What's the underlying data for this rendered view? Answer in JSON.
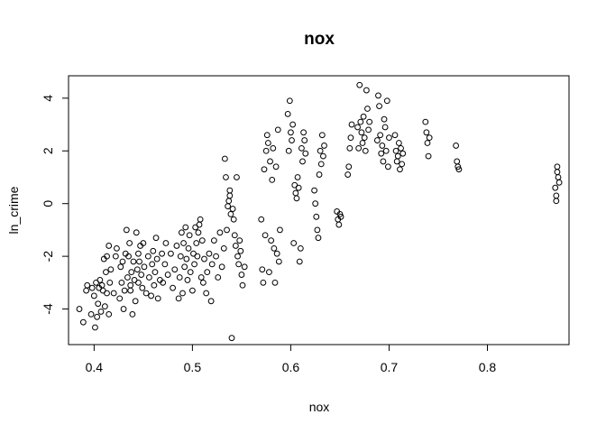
{
  "chart_data": {
    "type": "scatter",
    "title": "nox",
    "xlabel": "nox",
    "ylabel": "ln_crime",
    "xlim": [
      0.374,
      0.883
    ],
    "ylim": [
      -5.35,
      4.85
    ],
    "xticks": [
      0.4,
      0.5,
      0.6,
      0.7,
      0.8
    ],
    "xtick_labels": [
      "0.4",
      "0.5",
      "0.6",
      "0.7",
      "0.8"
    ],
    "yticks": [
      -4,
      -2,
      0,
      2,
      4
    ],
    "ytick_labels": [
      "-4",
      "-2",
      "0",
      "2",
      "4"
    ],
    "grid": false,
    "marker": "open-circle",
    "point_color": "#000000",
    "points": [
      [
        0.385,
        -4.0
      ],
      [
        0.389,
        -4.5
      ],
      [
        0.392,
        -3.3
      ],
      [
        0.393,
        -3.1
      ],
      [
        0.397,
        -4.2
      ],
      [
        0.398,
        -3.2
      ],
      [
        0.4,
        -3.5
      ],
      [
        0.401,
        -4.7
      ],
      [
        0.402,
        -3.0
      ],
      [
        0.403,
        -4.3
      ],
      [
        0.404,
        -3.8
      ],
      [
        0.405,
        -3.2
      ],
      [
        0.406,
        -2.9
      ],
      [
        0.407,
        -4.1
      ],
      [
        0.408,
        -3.1
      ],
      [
        0.409,
        -3.3
      ],
      [
        0.41,
        -2.1
      ],
      [
        0.411,
        -3.9
      ],
      [
        0.412,
        -2.6
      ],
      [
        0.413,
        -3.4
      ],
      [
        0.413,
        -2.0
      ],
      [
        0.415,
        -1.6
      ],
      [
        0.415,
        -4.2
      ],
      [
        0.416,
        -3.0
      ],
      [
        0.417,
        -2.5
      ],
      [
        0.42,
        -3.4
      ],
      [
        0.422,
        -2.0
      ],
      [
        0.423,
        -1.7
      ],
      [
        0.426,
        -3.6
      ],
      [
        0.427,
        -2.4
      ],
      [
        0.428,
        -3.0
      ],
      [
        0.429,
        -2.2
      ],
      [
        0.43,
        -4.0
      ],
      [
        0.431,
        -3.3
      ],
      [
        0.432,
        -1.9
      ],
      [
        0.433,
        -1.0
      ],
      [
        0.434,
        -2.8
      ],
      [
        0.435,
        -2.0
      ],
      [
        0.436,
        -1.5
      ],
      [
        0.437,
        -3.1
      ],
      [
        0.437,
        -3.3
      ],
      [
        0.438,
        -2.6
      ],
      [
        0.439,
        -4.2
      ],
      [
        0.44,
        -2.2
      ],
      [
        0.441,
        -2.9
      ],
      [
        0.442,
        -3.7
      ],
      [
        0.443,
        -1.1
      ],
      [
        0.444,
        -2.5
      ],
      [
        0.445,
        -1.9
      ],
      [
        0.445,
        -3.0
      ],
      [
        0.446,
        -2.2
      ],
      [
        0.447,
        -1.6
      ],
      [
        0.448,
        -2.7
      ],
      [
        0.449,
        -3.2
      ],
      [
        0.45,
        -1.5
      ],
      [
        0.451,
        -2.4
      ],
      [
        0.453,
        -3.4
      ],
      [
        0.455,
        -2.0
      ],
      [
        0.456,
        -2.8
      ],
      [
        0.458,
        -3.5
      ],
      [
        0.459,
        -2.3
      ],
      [
        0.46,
        -1.8
      ],
      [
        0.461,
        -3.1
      ],
      [
        0.462,
        -2.6
      ],
      [
        0.463,
        -1.3
      ],
      [
        0.464,
        -2.1
      ],
      [
        0.465,
        -3.6
      ],
      [
        0.467,
        -2.9
      ],
      [
        0.469,
        -1.9
      ],
      [
        0.47,
        -3.0
      ],
      [
        0.472,
        -2.3
      ],
      [
        0.473,
        -1.5
      ],
      [
        0.475,
        -2.7
      ],
      [
        0.478,
        -1.9
      ],
      [
        0.48,
        -3.2
      ],
      [
        0.482,
        -2.5
      ],
      [
        0.484,
        -1.6
      ],
      [
        0.486,
        -3.6
      ],
      [
        0.487,
        -2.8
      ],
      [
        0.488,
        -2.0
      ],
      [
        0.489,
        -1.1
      ],
      [
        0.49,
        -3.4
      ],
      [
        0.491,
        -1.5
      ],
      [
        0.492,
        -2.4
      ],
      [
        0.493,
        -0.9
      ],
      [
        0.494,
        -2.1
      ],
      [
        0.495,
        -2.9
      ],
      [
        0.496,
        -1.7
      ],
      [
        0.497,
        -1.2
      ],
      [
        0.498,
        -2.6
      ],
      [
        0.5,
        -3.3
      ],
      [
        0.501,
        -1.9
      ],
      [
        0.502,
        -2.3
      ],
      [
        0.503,
        -0.9
      ],
      [
        0.504,
        -1.5
      ],
      [
        0.505,
        -2.0
      ],
      [
        0.506,
        -1.1
      ],
      [
        0.507,
        -0.8
      ],
      [
        0.508,
        -0.6
      ],
      [
        0.509,
        -2.8
      ],
      [
        0.51,
        -1.4
      ],
      [
        0.511,
        -3.0
      ],
      [
        0.512,
        -2.1
      ],
      [
        0.514,
        -3.4
      ],
      [
        0.515,
        -2.6
      ],
      [
        0.517,
        -1.9
      ],
      [
        0.519,
        -3.7
      ],
      [
        0.52,
        -2.3
      ],
      [
        0.522,
        -1.4
      ],
      [
        0.524,
        -2.0
      ],
      [
        0.526,
        -2.8
      ],
      [
        0.528,
        -1.1
      ],
      [
        0.53,
        -2.4
      ],
      [
        0.532,
        -1.7
      ],
      [
        0.533,
        1.7
      ],
      [
        0.534,
        1.0
      ],
      [
        0.535,
        -1.0
      ],
      [
        0.536,
        -0.1
      ],
      [
        0.537,
        0.1
      ],
      [
        0.538,
        0.3
      ],
      [
        0.538,
        0.5
      ],
      [
        0.539,
        -0.4
      ],
      [
        0.54,
        -5.1
      ],
      [
        0.541,
        -0.2
      ],
      [
        0.542,
        -0.6
      ],
      [
        0.543,
        -1.2
      ],
      [
        0.544,
        -1.6
      ],
      [
        0.545,
        1.0
      ],
      [
        0.546,
        -2.0
      ],
      [
        0.547,
        -2.3
      ],
      [
        0.548,
        -1.4
      ],
      [
        0.549,
        -1.8
      ],
      [
        0.55,
        -2.7
      ],
      [
        0.551,
        -3.1
      ],
      [
        0.553,
        -2.4
      ],
      [
        0.57,
        -0.6
      ],
      [
        0.571,
        -2.5
      ],
      [
        0.572,
        -3.0
      ],
      [
        0.573,
        1.3
      ],
      [
        0.574,
        -1.2
      ],
      [
        0.575,
        2.0
      ],
      [
        0.576,
        2.6
      ],
      [
        0.577,
        2.3
      ],
      [
        0.578,
        -2.6
      ],
      [
        0.579,
        1.6
      ],
      [
        0.58,
        -1.4
      ],
      [
        0.581,
        0.9
      ],
      [
        0.582,
        2.1
      ],
      [
        0.583,
        -1.7
      ],
      [
        0.584,
        -3.0
      ],
      [
        0.585,
        1.4
      ],
      [
        0.586,
        -1.9
      ],
      [
        0.587,
        2.8
      ],
      [
        0.588,
        -2.2
      ],
      [
        0.589,
        -1.0
      ],
      [
        0.597,
        3.4
      ],
      [
        0.598,
        2.0
      ],
      [
        0.599,
        3.9
      ],
      [
        0.6,
        2.7
      ],
      [
        0.601,
        2.4
      ],
      [
        0.602,
        3.0
      ],
      [
        0.603,
        -1.5
      ],
      [
        0.604,
        0.7
      ],
      [
        0.605,
        0.4
      ],
      [
        0.606,
        0.2
      ],
      [
        0.607,
        1.0
      ],
      [
        0.608,
        0.6
      ],
      [
        0.609,
        -2.2
      ],
      [
        0.61,
        -1.7
      ],
      [
        0.611,
        2.1
      ],
      [
        0.612,
        1.6
      ],
      [
        0.613,
        2.7
      ],
      [
        0.614,
        2.4
      ],
      [
        0.615,
        1.9
      ],
      [
        0.624,
        0.5
      ],
      [
        0.625,
        0.0
      ],
      [
        0.626,
        -0.5
      ],
      [
        0.627,
        -1.0
      ],
      [
        0.628,
        -1.3
      ],
      [
        0.629,
        1.1
      ],
      [
        0.63,
        2.0
      ],
      [
        0.631,
        1.5
      ],
      [
        0.632,
        2.6
      ],
      [
        0.633,
        1.8
      ],
      [
        0.634,
        2.2
      ],
      [
        0.647,
        -0.3
      ],
      [
        0.648,
        -0.6
      ],
      [
        0.649,
        -0.8
      ],
      [
        0.65,
        -0.4
      ],
      [
        0.651,
        -0.5
      ],
      [
        0.658,
        1.1
      ],
      [
        0.659,
        1.4
      ],
      [
        0.66,
        2.1
      ],
      [
        0.661,
        2.5
      ],
      [
        0.662,
        3.0
      ],
      [
        0.668,
        2.9
      ],
      [
        0.669,
        2.1
      ],
      [
        0.67,
        4.5
      ],
      [
        0.671,
        3.1
      ],
      [
        0.672,
        2.7
      ],
      [
        0.673,
        2.3
      ],
      [
        0.674,
        3.3
      ],
      [
        0.675,
        2.5
      ],
      [
        0.676,
        2.0
      ],
      [
        0.677,
        4.3
      ],
      [
        0.678,
        3.6
      ],
      [
        0.679,
        2.8
      ],
      [
        0.68,
        3.1
      ],
      [
        0.688,
        2.4
      ],
      [
        0.689,
        4.1
      ],
      [
        0.69,
        3.7
      ],
      [
        0.691,
        2.6
      ],
      [
        0.692,
        1.9
      ],
      [
        0.693,
        2.2
      ],
      [
        0.694,
        1.6
      ],
      [
        0.695,
        3.2
      ],
      [
        0.696,
        2.9
      ],
      [
        0.697,
        2.0
      ],
      [
        0.698,
        3.9
      ],
      [
        0.699,
        1.4
      ],
      [
        0.7,
        2.5
      ],
      [
        0.706,
        2.6
      ],
      [
        0.707,
        2.0
      ],
      [
        0.708,
        1.6
      ],
      [
        0.709,
        1.8
      ],
      [
        0.71,
        2.3
      ],
      [
        0.711,
        1.3
      ],
      [
        0.712,
        2.1
      ],
      [
        0.713,
        1.5
      ],
      [
        0.714,
        1.9
      ],
      [
        0.737,
        3.1
      ],
      [
        0.738,
        2.7
      ],
      [
        0.739,
        2.3
      ],
      [
        0.74,
        1.8
      ],
      [
        0.741,
        2.5
      ],
      [
        0.768,
        2.2
      ],
      [
        0.769,
        1.6
      ],
      [
        0.77,
        1.4
      ],
      [
        0.771,
        1.3
      ],
      [
        0.869,
        0.6
      ],
      [
        0.87,
        0.3
      ],
      [
        0.871,
        1.4
      ],
      [
        0.872,
        1.0
      ],
      [
        0.873,
        0.8
      ],
      [
        0.87,
        0.1
      ],
      [
        0.871,
        1.2
      ]
    ]
  }
}
